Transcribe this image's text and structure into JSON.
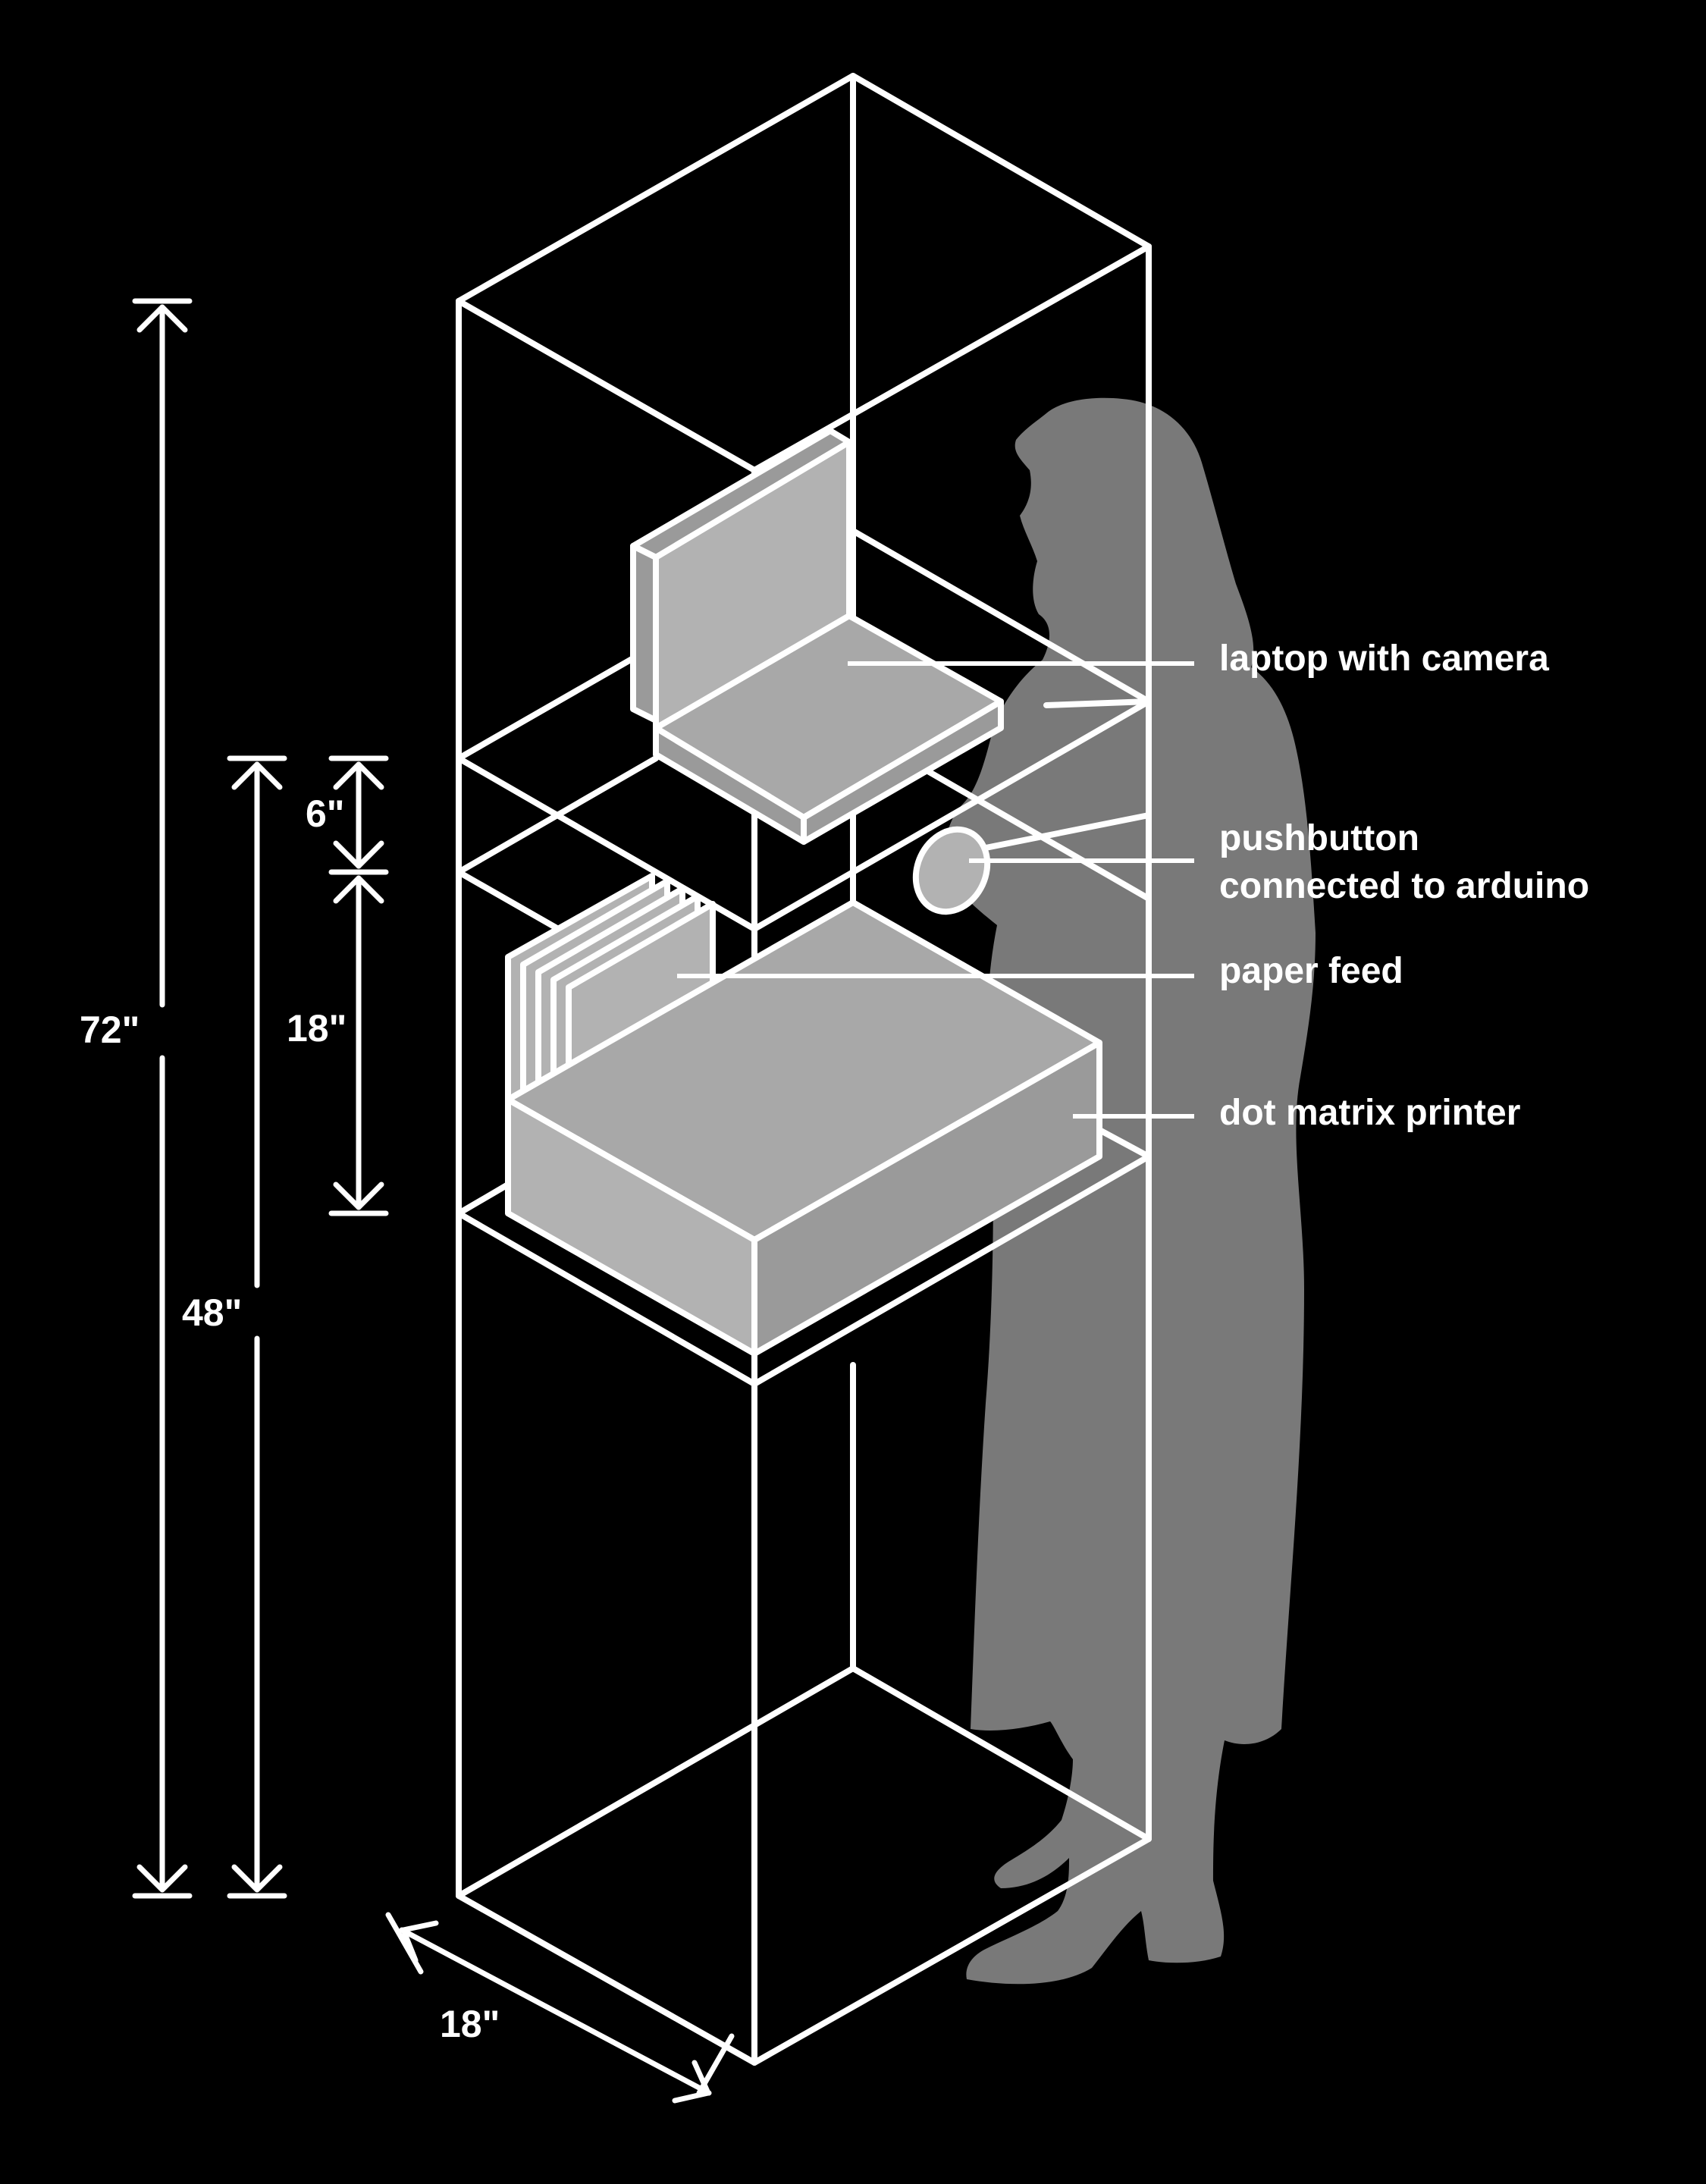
{
  "colors": {
    "background": "#000000",
    "lines": "#ffffff",
    "silhouette": "#8a8a8a",
    "objects": "#a8a8a8"
  },
  "dimensions": {
    "height_total": "72\"",
    "height_counter": "48\"",
    "gap_top": "6\"",
    "height_printer_zone": "18\"",
    "depth": "18\""
  },
  "callouts": {
    "laptop": "laptop with camera",
    "pushbutton_line1": "pushbutton",
    "pushbutton_line2": "connected to arduino",
    "paper_feed": "paper feed",
    "printer": "dot matrix printer"
  },
  "icons": [
    "person-silhouette",
    "laptop",
    "pushbutton",
    "paper-stack",
    "printer"
  ]
}
